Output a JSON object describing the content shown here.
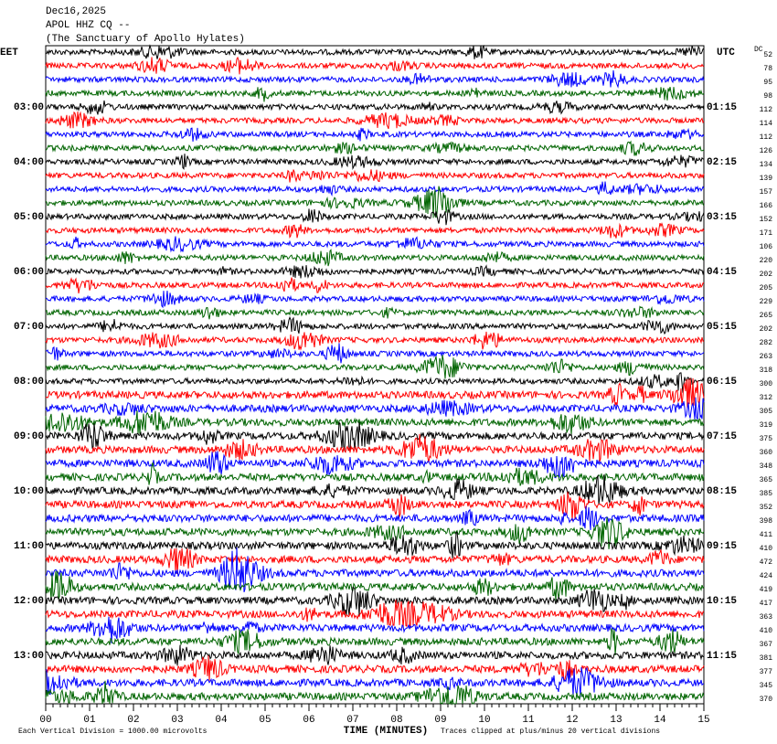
{
  "header": {
    "date": "Dec16,2025",
    "station": "APOL HHZ CQ --",
    "site": "(The Sanctuary of Apollo Hylates)",
    "left_zone": "EET",
    "right_zone": "UTC",
    "dc_label": "DC"
  },
  "left_labels": [
    "03:00",
    "04:00",
    "05:00",
    "06:00",
    "07:00",
    "08:00",
    "09:00",
    "10:00",
    "11:00",
    "12:00",
    "13:00"
  ],
  "right_labels": [
    "01:15",
    "02:15",
    "03:15",
    "04:15",
    "05:15",
    "06:15",
    "07:15",
    "08:15",
    "09:15",
    "10:15",
    "11:15"
  ],
  "dc_values": [
    52,
    78,
    95,
    98,
    112,
    114,
    112,
    126,
    134,
    139,
    157,
    166,
    152,
    171,
    106,
    220,
    202,
    205,
    229,
    265,
    202,
    282,
    263,
    318,
    300,
    312,
    305,
    319,
    375,
    360,
    348,
    365,
    385,
    352,
    398,
    411,
    410,
    472,
    424,
    419,
    417,
    363,
    410,
    367,
    381,
    377,
    345,
    370
  ],
  "x_axis": {
    "ticks": [
      "00",
      "01",
      "02",
      "03",
      "04",
      "05",
      "06",
      "07",
      "08",
      "09",
      "10",
      "11",
      "12",
      "13",
      "14",
      "15"
    ],
    "label": "TIME (MINUTES)"
  },
  "footer": {
    "scale_note": "Each Vertical Division = 1000.00 microvolts",
    "clip_note": "Traces clipped at plus/minus 20 vertical divisions"
  }
}
